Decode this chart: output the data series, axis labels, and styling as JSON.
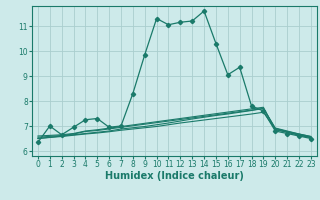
{
  "bg_color": "#cdeaea",
  "grid_color": "#aacece",
  "line_color": "#1a7a6a",
  "xlabel": "Humidex (Indice chaleur)",
  "xlabel_fontsize": 7,
  "yticks": [
    6,
    7,
    8,
    9,
    10,
    11
  ],
  "xticks": [
    0,
    1,
    2,
    3,
    4,
    5,
    6,
    7,
    8,
    9,
    10,
    11,
    12,
    13,
    14,
    15,
    16,
    17,
    18,
    19,
    20,
    21,
    22,
    23
  ],
  "xlim": [
    -0.5,
    23.5
  ],
  "ylim": [
    5.8,
    11.8
  ],
  "curve1_x": [
    0,
    1,
    2,
    3,
    4,
    5,
    6,
    7,
    8,
    9,
    10,
    11,
    12,
    13,
    14,
    15,
    16,
    17,
    18,
    19,
    20,
    21,
    22,
    23
  ],
  "curve1_y": [
    6.35,
    7.0,
    6.65,
    6.95,
    7.25,
    7.3,
    6.95,
    7.0,
    8.3,
    9.85,
    11.3,
    11.05,
    11.15,
    11.2,
    11.6,
    10.3,
    9.05,
    9.35,
    7.8,
    7.6,
    6.8,
    6.7,
    6.6,
    6.5
  ],
  "curve2_x": [
    0,
    2,
    3,
    4,
    5,
    19,
    20,
    21,
    22,
    23
  ],
  "curve2_y": [
    6.6,
    6.65,
    6.7,
    6.8,
    6.85,
    7.75,
    6.85,
    6.75,
    6.65,
    6.55
  ],
  "curve3_x": [
    0,
    2,
    3,
    4,
    5,
    19,
    20,
    21,
    22,
    23
  ],
  "curve3_y": [
    6.55,
    6.62,
    6.68,
    6.78,
    6.82,
    7.7,
    6.9,
    6.78,
    6.68,
    6.58
  ],
  "curve4_x": [
    0,
    2,
    3,
    4,
    5,
    6,
    7,
    8,
    9,
    10,
    11,
    12,
    13,
    14,
    15,
    16,
    17,
    18,
    19,
    20,
    21,
    22,
    23
  ],
  "curve4_y": [
    6.5,
    6.6,
    6.65,
    6.7,
    6.75,
    6.8,
    6.88,
    6.93,
    6.98,
    7.05,
    7.12,
    7.2,
    7.28,
    7.35,
    7.42,
    7.48,
    7.55,
    7.62,
    7.7,
    6.92,
    6.8,
    6.68,
    6.58
  ],
  "curve5_x": [
    0,
    2,
    3,
    4,
    5,
    6,
    7,
    8,
    9,
    10,
    11,
    12,
    13,
    14,
    15,
    16,
    17,
    18,
    19,
    20,
    21,
    22,
    23
  ],
  "curve5_y": [
    6.5,
    6.58,
    6.63,
    6.68,
    6.72,
    6.77,
    6.83,
    6.88,
    6.93,
    6.98,
    7.05,
    7.12,
    7.18,
    7.24,
    7.3,
    7.36,
    7.42,
    7.48,
    7.55,
    6.87,
    6.75,
    6.63,
    6.53
  ]
}
